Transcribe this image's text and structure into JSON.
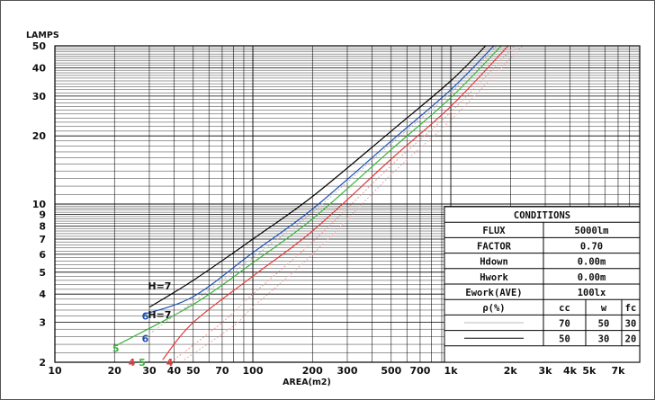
{
  "chart_data": {
    "type": "line",
    "title": "",
    "ylabel": "LAMPS",
    "xlabel": "AREA(m2)",
    "x_scale": "log",
    "y_scale": "log",
    "xlim": [
      10,
      9000
    ],
    "ylim": [
      2,
      50
    ],
    "x_ticks": [
      10,
      20,
      30,
      40,
      50,
      70,
      100,
      200,
      300,
      500,
      700,
      1000,
      2000,
      3000,
      4000,
      5000,
      7000
    ],
    "x_tick_labels": [
      "10",
      "20",
      "30",
      "40",
      "50",
      "70",
      "100",
      "200",
      "300",
      "500",
      "700",
      "1k",
      "2k",
      "3k",
      "4k",
      "5k",
      "7k"
    ],
    "y_ticks": [
      2,
      3,
      4,
      5,
      6,
      7,
      8,
      9,
      10,
      20,
      30,
      40,
      50
    ],
    "y_tick_labels": [
      "2",
      "3",
      "4",
      "5",
      "6",
      "7",
      "8",
      "9",
      "10",
      "20",
      "30",
      "40",
      "50"
    ],
    "grid": true,
    "series": [
      {
        "color": "#000000",
        "style": "solid",
        "label": "H=7",
        "x": [
          30,
          50,
          100,
          200,
          500,
          1000,
          1500
        ],
        "y": [
          3.5,
          4.6,
          7.0,
          10.8,
          21,
          35,
          50
        ]
      },
      {
        "color": "#1f4fb3",
        "style": "solid",
        "label": "6",
        "x": [
          28,
          50,
          100,
          200,
          500,
          1000,
          1650
        ],
        "y": [
          3.25,
          3.9,
          6.1,
          9.5,
          19,
          32,
          50
        ]
      },
      {
        "color": "#3ab53a",
        "style": "solid",
        "label": "5",
        "x": [
          20,
          50,
          100,
          200,
          500,
          1000,
          1800
        ],
        "y": [
          2.35,
          3.6,
          5.5,
          8.6,
          17.4,
          29.5,
          50
        ]
      },
      {
        "color": "#e53a3a",
        "style": "solid",
        "label": "4",
        "x": [
          35,
          50,
          100,
          200,
          500,
          1000,
          1950
        ],
        "y": [
          2.05,
          3.0,
          4.8,
          7.6,
          15.8,
          27,
          50
        ]
      },
      {
        "color": "#bbbbbb",
        "style": "dotted",
        "label": "H=7",
        "x": [
          28,
          50,
          100,
          200,
          500,
          1000,
          1700
        ],
        "y": [
          2.55,
          3.7,
          5.8,
          9.2,
          18.5,
          31,
          50
        ]
      },
      {
        "color": "#ee9999",
        "style": "dotted",
        "x": [
          40,
          70,
          100,
          200,
          500,
          1000,
          2100
        ],
        "y": [
          2.05,
          3.0,
          4.0,
          6.8,
          14.8,
          25.5,
          50
        ]
      },
      {
        "color": "#f2aaaa",
        "style": "dotted",
        "x": [
          45,
          80,
          100,
          200,
          500,
          1000,
          2300
        ],
        "y": [
          2.05,
          2.9,
          3.5,
          6.0,
          13.5,
          23.5,
          50
        ]
      }
    ],
    "curve_labels": [
      {
        "text": "H=7",
        "color": "#111111",
        "x": 29.5,
        "y": 4.35
      },
      {
        "text": "H=7",
        "color": "#111111",
        "x": 29.5,
        "y": 3.25
      },
      {
        "text": "6",
        "color": "#1f4fb3",
        "x": 27.5,
        "y": 3.2
      },
      {
        "text": "6",
        "color": "#1f4fb3",
        "x": 27.5,
        "y": 2.55
      },
      {
        "text": "5",
        "color": "#3ab53a",
        "x": 19.5,
        "y": 2.3
      },
      {
        "text": "5",
        "color": "#3ab53a",
        "x": 26.5,
        "y": 2.0
      },
      {
        "text": "4",
        "color": "#e53a3a",
        "x": 23.5,
        "y": 2.0
      },
      {
        "text": "4",
        "color": "#e53a3a",
        "x": 36.5,
        "y": 2.0
      }
    ],
    "conditions": {
      "title": "CONDITIONS",
      "rows": [
        {
          "label": "FLUX",
          "value": "5000lm"
        },
        {
          "label": "FACTOR",
          "value": "0.70"
        },
        {
          "label": "Hdown",
          "value": "0.00m"
        },
        {
          "label": "Hwork",
          "value": "0.00m"
        },
        {
          "label": "Ework(AVE)",
          "value": "100lx"
        }
      ],
      "rho_header": "ρ(%)",
      "reflect_headers": [
        "cc",
        "w",
        "fc"
      ],
      "reflect_rows": [
        {
          "line_color": "#bbbbbb",
          "values": [
            "70",
            "50",
            "30"
          ]
        },
        {
          "line_color": "#000000",
          "values": [
            "50",
            "30",
            "20"
          ]
        }
      ]
    }
  }
}
